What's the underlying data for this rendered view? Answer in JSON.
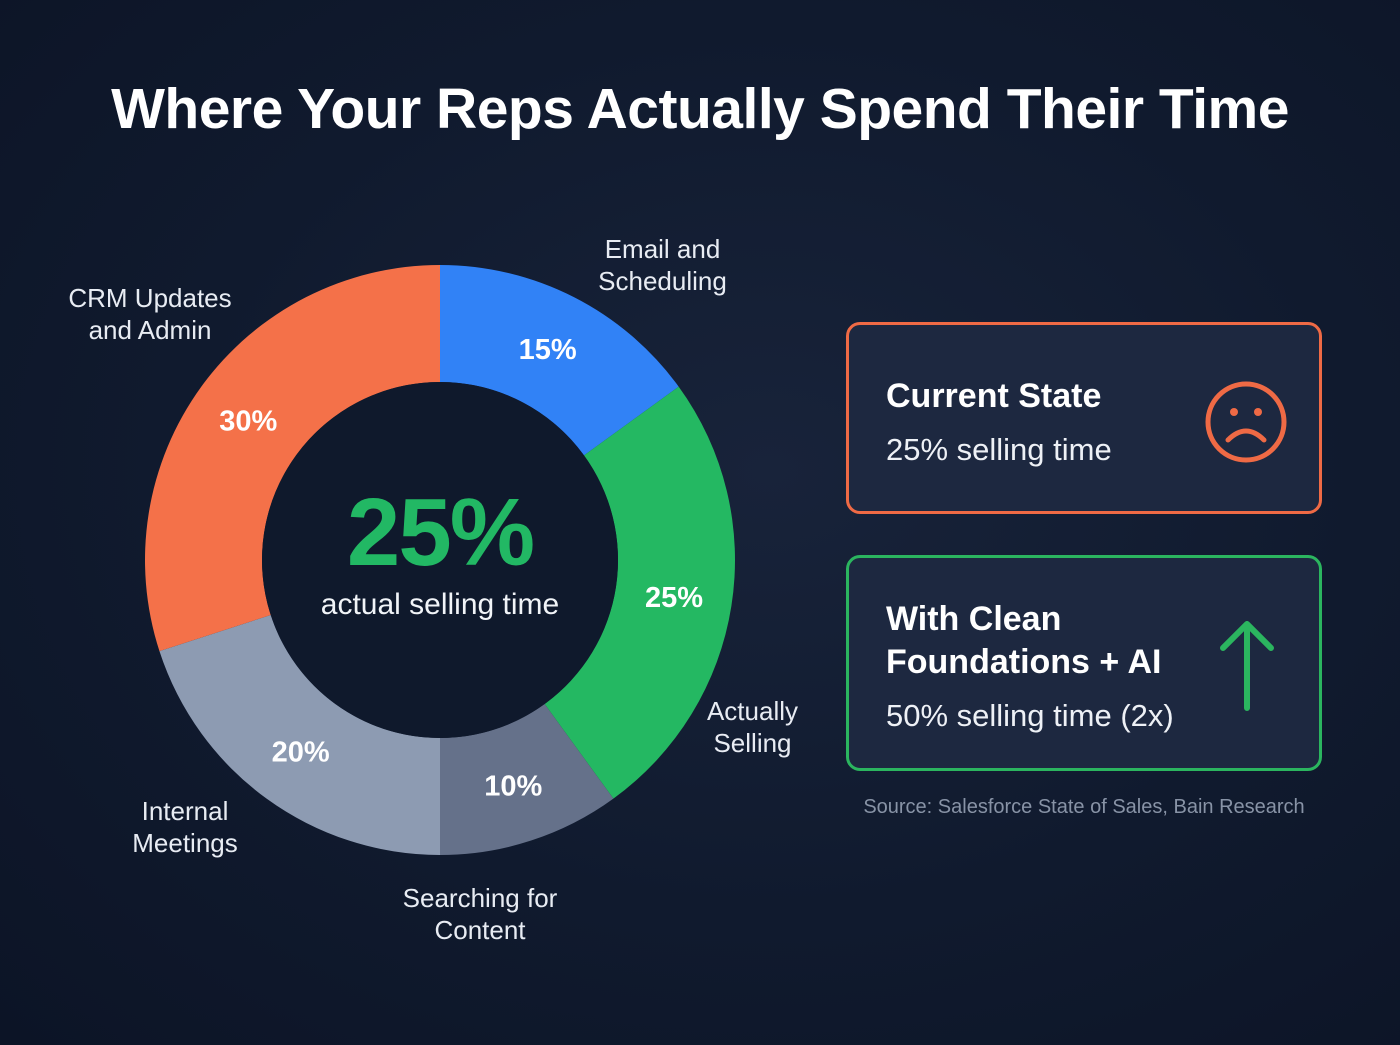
{
  "chart_data": {
    "type": "pie",
    "variant": "donut",
    "title": "Where Your Reps Actually Spend Their Time",
    "slices": [
      {
        "label": "Email and Scheduling",
        "value": 15,
        "display": "15%",
        "color": "#3182f6"
      },
      {
        "label": "Actually Selling",
        "value": 25,
        "display": "25%",
        "color": "#24b862"
      },
      {
        "label": "Searching for Content",
        "value": 10,
        "display": "10%",
        "color": "#65718a"
      },
      {
        "label": "Internal Meetings",
        "value": 20,
        "display": "20%",
        "color": "#8d9bb2"
      },
      {
        "label": "CRM Updates and Admin",
        "value": 30,
        "display": "30%",
        "color": "#f47149"
      }
    ],
    "center_value": "25%",
    "center_label": "actual selling time"
  },
  "labels": {
    "email": "Email and\nScheduling",
    "selling": "Actually\nSelling",
    "searching": "Searching for\nContent",
    "meetings": "Internal\nMeetings",
    "crm": "CRM Updates\nand Admin"
  },
  "cards": {
    "current": {
      "title": "Current State",
      "text": "25% selling time",
      "icon": "sad-face-icon",
      "color": "#ef6a45"
    },
    "future": {
      "title": "With Clean Foundations + AI",
      "text": "50% selling time (2x)",
      "icon": "arrow-up-icon",
      "color": "#2bb55f"
    }
  },
  "source": "Source: Salesforce State of Sales, Bain Research"
}
